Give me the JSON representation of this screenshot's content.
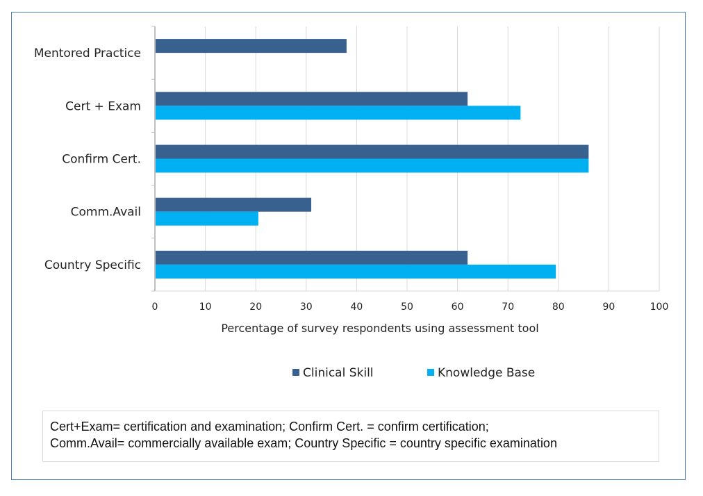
{
  "chart_data": {
    "type": "bar",
    "orientation": "horizontal",
    "categories": [
      "Mentored Practice",
      "Cert + Exam",
      "Confirm Cert.",
      "Comm.Avail",
      "Country Specific"
    ],
    "series": [
      {
        "name": "Clinical Skill",
        "color": "#386190",
        "values": [
          38,
          62,
          86,
          31,
          62
        ]
      },
      {
        "name": "Knowledge Base",
        "color": "#00b0f0",
        "values": [
          0,
          72.5,
          86,
          20.5,
          79.5
        ]
      }
    ],
    "xlabel": "Percentage  of survey  respondents  using  assessment  tool",
    "ylabel": "",
    "xlim": [
      0,
      100
    ],
    "xticks": [
      0,
      10,
      20,
      30,
      40,
      50,
      60,
      70,
      80,
      90,
      100
    ],
    "grid": true,
    "legend": "bottom"
  },
  "footnote": {
    "line1": "Cert+Exam= certification and examination; Confirm Cert. = confirm certification;",
    "line2": "Comm.Avail= commercially available exam; Country Specific = country specific examination"
  }
}
